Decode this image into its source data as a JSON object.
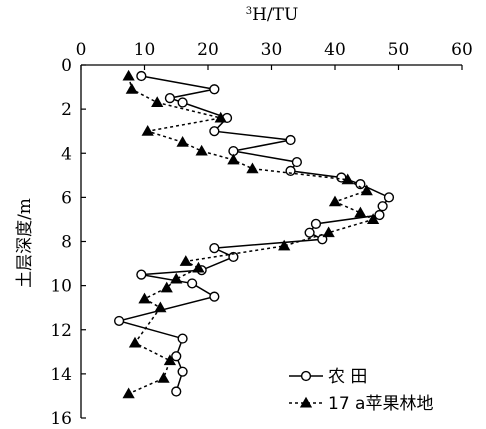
{
  "chart_data": {
    "type": "line",
    "title": "",
    "xlabel_sup": "3",
    "xlabel_main": "H/TU",
    "ylabel": "土层深度/m",
    "xlim": [
      0,
      60
    ],
    "ylim": [
      0,
      16
    ],
    "x_ticks": [
      0,
      10,
      20,
      30,
      40,
      50,
      60
    ],
    "y_ticks": [
      0,
      2,
      4,
      6,
      8,
      10,
      12,
      14,
      16
    ],
    "x_axis_position": "top",
    "y_axis_inverted": true,
    "grid": false,
    "legend_position": "bottom-right",
    "series": [
      {
        "name": "农 田",
        "marker": "open-circle",
        "line": "solid",
        "points": [
          {
            "x": 9.5,
            "y": 0.5
          },
          {
            "x": 21.0,
            "y": 1.1
          },
          {
            "x": 14.0,
            "y": 1.5
          },
          {
            "x": 16.0,
            "y": 1.7
          },
          {
            "x": 23.0,
            "y": 2.4
          },
          {
            "x": 21.0,
            "y": 3.0
          },
          {
            "x": 33.0,
            "y": 3.4
          },
          {
            "x": 24.0,
            "y": 3.9
          },
          {
            "x": 34.0,
            "y": 4.4
          },
          {
            "x": 33.0,
            "y": 4.8
          },
          {
            "x": 41.0,
            "y": 5.1
          },
          {
            "x": 44.0,
            "y": 5.4
          },
          {
            "x": 48.5,
            "y": 6.0
          },
          {
            "x": 47.5,
            "y": 6.4
          },
          {
            "x": 47.0,
            "y": 6.8
          },
          {
            "x": 37.0,
            "y": 7.2
          },
          {
            "x": 36.0,
            "y": 7.6
          },
          {
            "x": 38.0,
            "y": 7.9
          },
          {
            "x": 21.0,
            "y": 8.3
          },
          {
            "x": 24.0,
            "y": 8.7
          },
          {
            "x": 19.0,
            "y": 9.3
          },
          {
            "x": 9.5,
            "y": 9.5
          },
          {
            "x": 17.5,
            "y": 9.9
          },
          {
            "x": 21.0,
            "y": 10.5
          },
          {
            "x": 6.0,
            "y": 11.6
          },
          {
            "x": 16.0,
            "y": 12.4
          },
          {
            "x": 15.0,
            "y": 13.2
          },
          {
            "x": 16.0,
            "y": 13.9
          },
          {
            "x": 15.0,
            "y": 14.8
          }
        ]
      },
      {
        "name": "17 a苹果林地",
        "marker": "filled-triangle",
        "line": "dashed",
        "points": [
          {
            "x": 7.5,
            "y": 0.5
          },
          {
            "x": 8.0,
            "y": 1.1
          },
          {
            "x": 12.0,
            "y": 1.7
          },
          {
            "x": 22.0,
            "y": 2.4
          },
          {
            "x": 10.5,
            "y": 3.0
          },
          {
            "x": 16.0,
            "y": 3.5
          },
          {
            "x": 19.0,
            "y": 3.9
          },
          {
            "x": 24.0,
            "y": 4.3
          },
          {
            "x": 27.0,
            "y": 4.7
          },
          {
            "x": 42.0,
            "y": 5.2
          },
          {
            "x": 45.0,
            "y": 5.7
          },
          {
            "x": 40.0,
            "y": 6.2
          },
          {
            "x": 44.0,
            "y": 6.7
          },
          {
            "x": 46.0,
            "y": 7.0
          },
          {
            "x": 39.0,
            "y": 7.6
          },
          {
            "x": 32.0,
            "y": 8.2
          },
          {
            "x": 16.5,
            "y": 8.9
          },
          {
            "x": 18.5,
            "y": 9.2
          },
          {
            "x": 15.0,
            "y": 9.7
          },
          {
            "x": 13.5,
            "y": 10.1
          },
          {
            "x": 10.0,
            "y": 10.6
          },
          {
            "x": 12.5,
            "y": 11.0
          },
          {
            "x": 8.5,
            "y": 12.6
          },
          {
            "x": 14.0,
            "y": 13.4
          },
          {
            "x": 13.0,
            "y": 14.2
          },
          {
            "x": 7.5,
            "y": 14.9
          }
        ]
      }
    ]
  }
}
